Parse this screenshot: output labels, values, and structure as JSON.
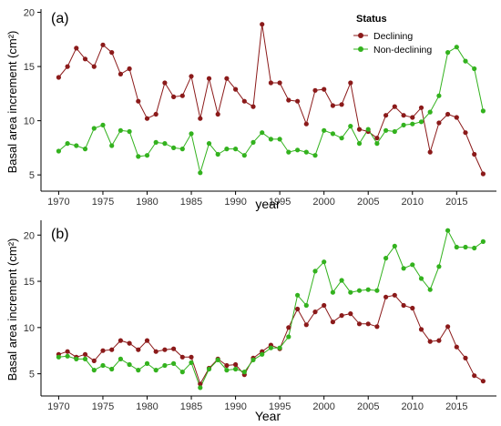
{
  "legend": {
    "title": "Status",
    "entries": [
      {
        "name": "Declining",
        "color": "#8B1A1A"
      },
      {
        "name": "Non-declining",
        "color": "#33B21E"
      }
    ]
  },
  "chart_data": [
    {
      "type": "line",
      "panel_label": "(a)",
      "xlabel": "year",
      "ylabel": "Basal area increment (cm²)",
      "xlim": [
        1968,
        2019.5
      ],
      "ylim": [
        3.5,
        20.3
      ],
      "xticks": [
        1970,
        1975,
        1980,
        1985,
        1990,
        1995,
        2000,
        2005,
        2010,
        2015
      ],
      "yticks": [
        5,
        10,
        15,
        20
      ],
      "grid": false,
      "legend_position": "top-right",
      "x": [
        1970,
        1971,
        1972,
        1973,
        1974,
        1975,
        1976,
        1977,
        1978,
        1979,
        1980,
        1981,
        1982,
        1983,
        1984,
        1985,
        1986,
        1987,
        1988,
        1989,
        1990,
        1991,
        1992,
        1993,
        1994,
        1995,
        1996,
        1997,
        1998,
        1999,
        2000,
        2001,
        2002,
        2003,
        2004,
        2005,
        2006,
        2007,
        2008,
        2009,
        2010,
        2011,
        2012,
        2013,
        2014,
        2015,
        2016,
        2017,
        2018
      ],
      "series": [
        {
          "name": "Declining",
          "color": "#8B1A1A",
          "values": [
            14.0,
            15.0,
            16.7,
            15.7,
            15.0,
            17.0,
            16.3,
            14.3,
            14.8,
            11.8,
            10.2,
            10.6,
            13.5,
            12.2,
            12.3,
            14.1,
            10.2,
            13.9,
            10.6,
            13.9,
            12.9,
            11.8,
            11.3,
            18.9,
            13.5,
            13.5,
            11.9,
            11.8,
            9.7,
            12.8,
            12.9,
            11.4,
            11.5,
            13.5,
            9.2,
            9.0,
            8.4,
            10.5,
            11.3,
            10.5,
            10.3,
            11.2,
            7.1,
            9.8,
            10.6,
            10.3,
            8.9,
            6.9,
            5.1
          ]
        },
        {
          "name": "Non-declining",
          "color": "#33B21E",
          "values": [
            7.2,
            7.9,
            7.7,
            7.4,
            9.3,
            9.6,
            7.7,
            9.1,
            9.0,
            6.7,
            6.8,
            8.0,
            7.9,
            7.5,
            7.4,
            8.8,
            5.2,
            7.9,
            6.9,
            7.4,
            7.4,
            6.8,
            8.0,
            8.9,
            8.3,
            8.3,
            7.1,
            7.3,
            7.1,
            6.8,
            9.1,
            8.8,
            8.4,
            9.5,
            7.9,
            9.2,
            7.9,
            9.1,
            9.0,
            9.6,
            9.7,
            9.9,
            10.8,
            12.3,
            16.3,
            16.8,
            15.5,
            14.8,
            10.9
          ]
        }
      ]
    },
    {
      "type": "line",
      "panel_label": "(b)",
      "xlabel": "Year",
      "ylabel": "Basal area increment (cm²)",
      "xlim": [
        1968,
        2019.5
      ],
      "ylim": [
        2.6,
        21.6
      ],
      "xticks": [
        1970,
        1975,
        1980,
        1985,
        1990,
        1995,
        2000,
        2005,
        2010,
        2015
      ],
      "yticks": [
        5,
        10,
        15,
        20
      ],
      "grid": false,
      "x": [
        1970,
        1971,
        1972,
        1973,
        1974,
        1975,
        1976,
        1977,
        1978,
        1979,
        1980,
        1981,
        1982,
        1983,
        1984,
        1985,
        1986,
        1987,
        1988,
        1989,
        1990,
        1991,
        1992,
        1993,
        1994,
        1995,
        1996,
        1997,
        1998,
        1999,
        2000,
        2001,
        2002,
        2003,
        2004,
        2005,
        2006,
        2007,
        2008,
        2009,
        2010,
        2011,
        2012,
        2013,
        2014,
        2015,
        2016,
        2017,
        2018
      ],
      "series": [
        {
          "name": "Declining",
          "color": "#8B1A1A",
          "values": [
            7.1,
            7.4,
            6.8,
            7.1,
            6.4,
            7.5,
            7.6,
            8.6,
            8.3,
            7.6,
            8.6,
            7.4,
            7.6,
            7.7,
            6.8,
            6.8,
            3.9,
            5.6,
            6.6,
            5.9,
            6.0,
            4.9,
            6.7,
            7.4,
            8.1,
            7.7,
            10.0,
            12.0,
            10.3,
            11.7,
            12.4,
            10.6,
            11.3,
            11.5,
            10.4,
            10.4,
            10.1,
            13.3,
            13.5,
            12.4,
            12.1,
            9.8,
            8.5,
            8.6,
            10.1,
            7.9,
            6.7,
            4.8,
            4.2
          ]
        },
        {
          "name": "Non-declining",
          "color": "#33B21E",
          "values": [
            6.8,
            6.9,
            6.6,
            6.6,
            5.4,
            5.9,
            5.5,
            6.6,
            6.0,
            5.4,
            6.1,
            5.4,
            5.9,
            6.1,
            5.2,
            6.2,
            3.5,
            5.5,
            6.5,
            5.4,
            5.5,
            5.2,
            6.5,
            7.1,
            7.8,
            7.8,
            9.0,
            13.5,
            12.4,
            16.1,
            17.1,
            13.8,
            15.1,
            13.8,
            14.0,
            14.1,
            14.0,
            17.5,
            18.8,
            16.4,
            16.8,
            15.3,
            14.1,
            16.6,
            20.5,
            18.7,
            18.7,
            18.6,
            19.3
          ]
        }
      ]
    }
  ]
}
